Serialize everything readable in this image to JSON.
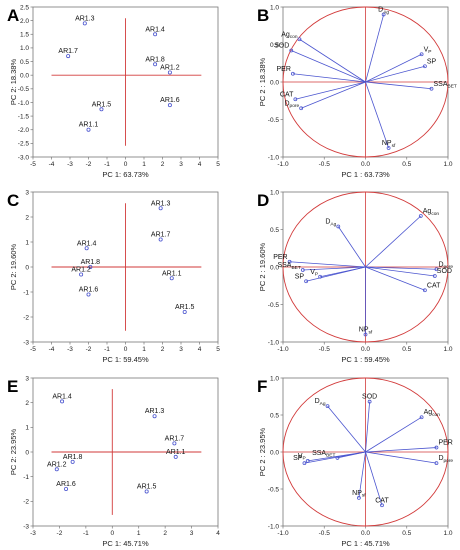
{
  "chart_data": [
    {
      "panel": "A",
      "type": "scatter",
      "xlabel": "PC 1: 63.73%",
      "ylabel": "PC 2: 18.38%",
      "xlim": [
        -5,
        5
      ],
      "ylim": [
        -3,
        2.5
      ],
      "xticks": [
        -5,
        -4,
        -3,
        -2,
        -1,
        0,
        1,
        2,
        3,
        4,
        5
      ],
      "yticks": [
        -3.0,
        -2.5,
        -2.0,
        -1.5,
        -1.0,
        -0.5,
        0.0,
        0.5,
        1.0,
        1.5,
        2.0,
        2.5
      ],
      "reference_lines": {
        "x": 0,
        "y": 0,
        "color": "#d23a3a"
      },
      "points": [
        {
          "label": "AR1.3",
          "x": -2.2,
          "y": 1.9
        },
        {
          "label": "AR1.7",
          "x": -3.1,
          "y": 0.7
        },
        {
          "label": "AR1.4",
          "x": 1.6,
          "y": 1.5
        },
        {
          "label": "AR1.8",
          "x": 1.6,
          "y": 0.4
        },
        {
          "label": "AR1.2",
          "x": 2.4,
          "y": 0.1
        },
        {
          "label": "AR1.5",
          "x": -1.3,
          "y": -1.25
        },
        {
          "label": "AR1.6",
          "x": 2.4,
          "y": -1.1
        },
        {
          "label": "AR1.1",
          "x": -2.0,
          "y": -2.0
        }
      ]
    },
    {
      "panel": "B",
      "type": "loading",
      "xlabel": "PC 1 : 63.73%",
      "ylabel": "PC 2 : 18.38%",
      "xlim": [
        -1.0,
        1.0
      ],
      "ylim": [
        -1.0,
        1.0
      ],
      "xticks": [
        -1.0,
        -0.5,
        0.0,
        0.5,
        1.0
      ],
      "yticks": [
        -1.0,
        -0.5,
        0.0,
        0.5,
        1.0
      ],
      "unit_circle": true,
      "vectors": [
        {
          "label": "D",
          "sub": "Ag",
          "x": 0.22,
          "y": 0.9
        },
        {
          "label": "Ag",
          "sub": "con",
          "x": -0.8,
          "y": 0.57
        },
        {
          "label": "SOD",
          "sub": "",
          "x": -0.9,
          "y": 0.42
        },
        {
          "label": "V",
          "sub": "P",
          "x": 0.68,
          "y": 0.37
        },
        {
          "label": "SP",
          "sub": "",
          "x": 0.72,
          "y": 0.21
        },
        {
          "label": "PER",
          "sub": "",
          "x": -0.88,
          "y": 0.11
        },
        {
          "label": "SSA",
          "sub": "BET",
          "x": 0.8,
          "y": -0.09
        },
        {
          "label": "CAT",
          "sub": "",
          "x": -0.85,
          "y": -0.23
        },
        {
          "label": "D",
          "sub": "pore",
          "x": -0.78,
          "y": -0.35
        },
        {
          "label": "NP",
          "sub": "sf",
          "x": 0.28,
          "y": -0.88
        }
      ]
    },
    {
      "panel": "C",
      "type": "scatter",
      "xlabel": "PC 1: 59.45%",
      "ylabel": "PC 2: 19.60%",
      "xlim": [
        -5,
        5
      ],
      "ylim": [
        -3,
        3
      ],
      "xticks": [
        -5,
        -4,
        -3,
        -2,
        -1,
        0,
        1,
        2,
        3,
        4,
        5
      ],
      "yticks": [
        -3,
        -2,
        -1,
        0,
        1,
        2,
        3
      ],
      "reference_lines": {
        "x": 0,
        "y": 0,
        "color": "#d23a3a"
      },
      "points": [
        {
          "label": "AR1.3",
          "x": 1.9,
          "y": 2.35
        },
        {
          "label": "AR1.7",
          "x": 1.9,
          "y": 1.1
        },
        {
          "label": "AR1.4",
          "x": -2.1,
          "y": 0.75
        },
        {
          "label": "AR1.8",
          "x": -1.9,
          "y": 0.0
        },
        {
          "label": "AR1.2",
          "x": -2.4,
          "y": -0.3
        },
        {
          "label": "AR1.1",
          "x": 2.5,
          "y": -0.45
        },
        {
          "label": "AR1.6",
          "x": -2.0,
          "y": -1.1
        },
        {
          "label": "AR1.5",
          "x": 3.2,
          "y": -1.8
        }
      ]
    },
    {
      "panel": "D",
      "type": "loading",
      "xlabel": "PC 1 : 59.45%",
      "ylabel": "PC 2 : 19.60%",
      "xlim": [
        -1.0,
        1.0
      ],
      "ylim": [
        -1.0,
        1.0
      ],
      "xticks": [
        -1.0,
        -0.5,
        0.0,
        0.5,
        1.0
      ],
      "yticks": [
        -1.0,
        -0.5,
        0.0,
        0.5,
        1.0
      ],
      "unit_circle": true,
      "vectors": [
        {
          "label": "Ag",
          "sub": "con",
          "x": 0.67,
          "y": 0.68
        },
        {
          "label": "D",
          "sub": "Ag",
          "x": -0.33,
          "y": 0.54
        },
        {
          "label": "PER",
          "sub": "",
          "x": -0.92,
          "y": 0.07
        },
        {
          "label": "D",
          "sub": "pore",
          "x": 0.86,
          "y": -0.03
        },
        {
          "label": "SSA",
          "sub": "BET",
          "x": -0.76,
          "y": -0.04
        },
        {
          "label": "SOD",
          "sub": "",
          "x": 0.84,
          "y": -0.12
        },
        {
          "label": "V",
          "sub": "P",
          "x": -0.55,
          "y": -0.13
        },
        {
          "label": "SP",
          "sub": "",
          "x": -0.72,
          "y": -0.19
        },
        {
          "label": "CAT",
          "sub": "",
          "x": 0.72,
          "y": -0.31
        },
        {
          "label": "NP",
          "sub": "sf",
          "x": 0.0,
          "y": -0.9
        }
      ]
    },
    {
      "panel": "E",
      "type": "scatter",
      "xlabel": "PC 1: 45.71%",
      "ylabel": "PC 2: 23.95%",
      "xlim": [
        -3,
        4
      ],
      "ylim": [
        -3,
        3
      ],
      "xticks": [
        -3,
        -2,
        -1,
        0,
        1,
        2,
        3,
        4
      ],
      "yticks": [
        -3,
        -2,
        -1,
        0,
        1,
        2,
        3
      ],
      "reference_lines": {
        "x": 0,
        "y": 0,
        "color": "#d23a3a"
      },
      "points": [
        {
          "label": "AR1.4",
          "x": -1.9,
          "y": 2.05
        },
        {
          "label": "AR1.3",
          "x": 1.6,
          "y": 1.45
        },
        {
          "label": "AR1.7",
          "x": 2.35,
          "y": 0.35
        },
        {
          "label": "AR1.1",
          "x": 2.4,
          "y": -0.2
        },
        {
          "label": "AR1.2",
          "x": -2.1,
          "y": -0.7
        },
        {
          "label": "AR1.8",
          "x": -1.5,
          "y": -0.4
        },
        {
          "label": "AR1.6",
          "x": -1.75,
          "y": -1.5
        },
        {
          "label": "AR1.5",
          "x": 1.3,
          "y": -1.6
        }
      ]
    },
    {
      "panel": "F",
      "type": "loading",
      "xlabel": "PC 1 : 45.71%",
      "ylabel": "PC 2 : 23.95%",
      "xlim": [
        -1.0,
        1.0
      ],
      "ylim": [
        -1.0,
        1.0
      ],
      "xticks": [
        -1.0,
        -0.5,
        0.0,
        0.5,
        1.0
      ],
      "yticks": [
        -1.0,
        -0.5,
        0.0,
        0.5,
        1.0
      ],
      "unit_circle": true,
      "vectors": [
        {
          "label": "D",
          "sub": "Ag",
          "x": -0.46,
          "y": 0.62
        },
        {
          "label": "SOD",
          "sub": "",
          "x": 0.05,
          "y": 0.68
        },
        {
          "label": "Ag",
          "sub": "con",
          "x": 0.68,
          "y": 0.47
        },
        {
          "label": "PER",
          "sub": "",
          "x": 0.86,
          "y": 0.06
        },
        {
          "label": "D",
          "sub": "pore",
          "x": 0.86,
          "y": -0.15
        },
        {
          "label": "SSA",
          "sub": "BET",
          "x": -0.34,
          "y": -0.08
        },
        {
          "label": "V",
          "sub": "P",
          "x": -0.7,
          "y": -0.12
        },
        {
          "label": "SP",
          "sub": "",
          "x": -0.74,
          "y": -0.15
        },
        {
          "label": "NP",
          "sub": "sf",
          "x": -0.08,
          "y": -0.62
        },
        {
          "label": "CAT",
          "sub": "",
          "x": 0.2,
          "y": -0.72
        }
      ]
    }
  ]
}
